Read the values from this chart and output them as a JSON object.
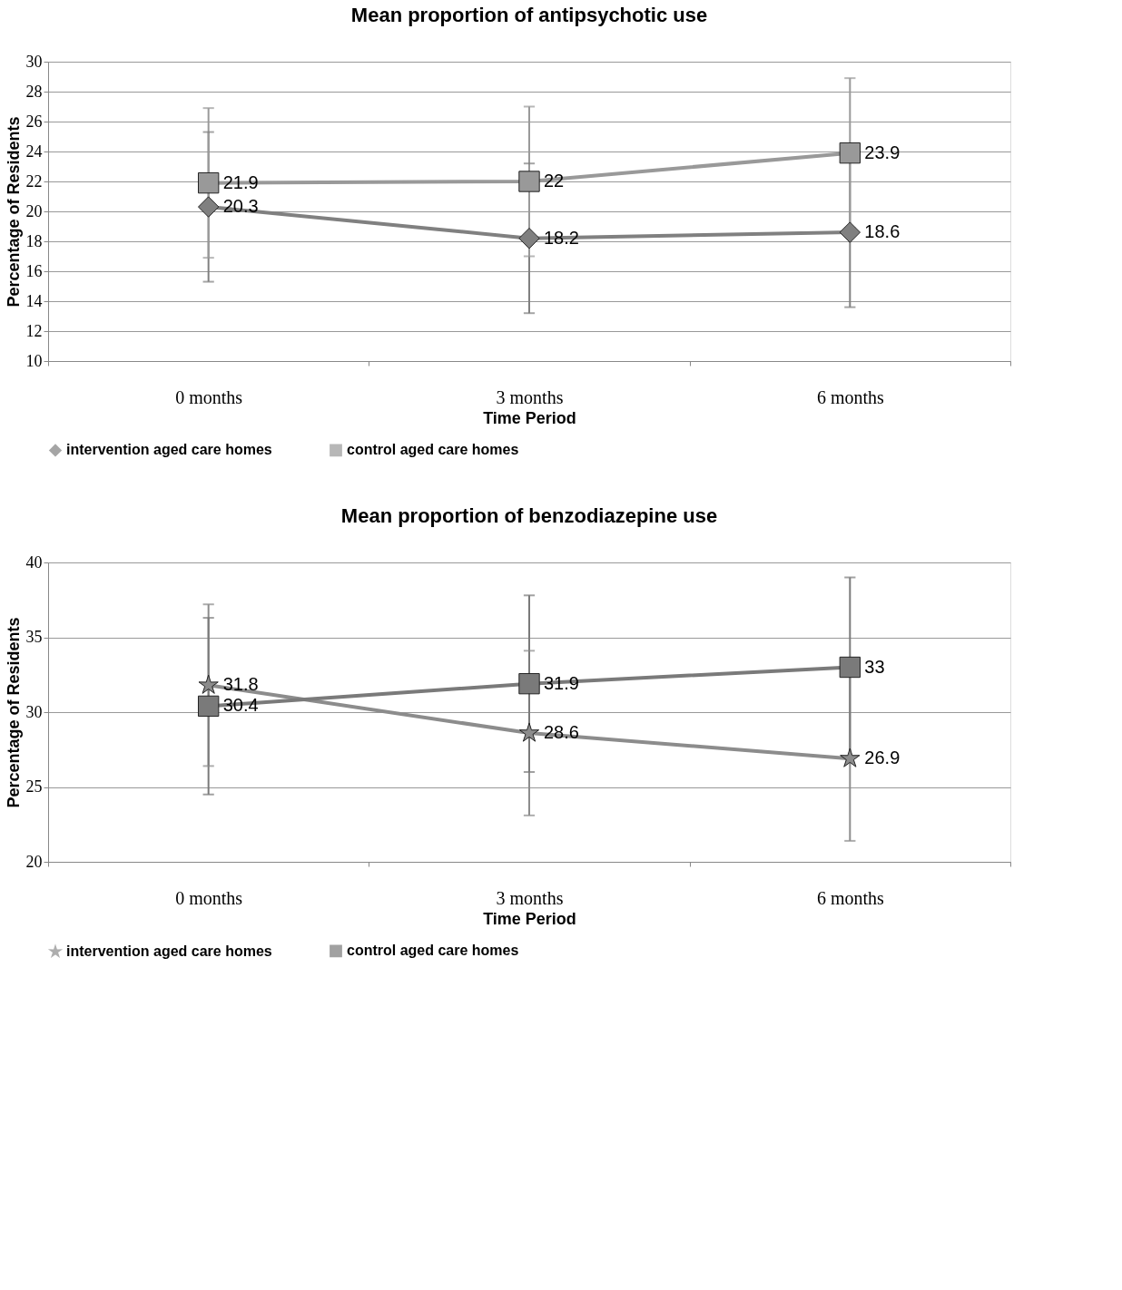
{
  "chart_data": [
    {
      "type": "line",
      "title": "Mean proportion of antipsychotic use",
      "xlabel": "Time Period",
      "ylabel": "Percentage of Residents",
      "categories": [
        "0 months",
        "3 months",
        "6 months"
      ],
      "ylim": [
        10,
        30
      ],
      "yticks": [
        10,
        12,
        14,
        16,
        18,
        20,
        22,
        24,
        26,
        28,
        30
      ],
      "grid": "y",
      "legend": "bottom",
      "data_labels": true,
      "series": [
        {
          "name": "intervention aged care homes",
          "color": "#808080",
          "marker": "diamond",
          "values": [
            20.3,
            18.2,
            18.6
          ],
          "errors": [
            5,
            5,
            5
          ]
        },
        {
          "name": "control aged care homes",
          "color": "#999999",
          "marker": "square",
          "values": [
            21.9,
            22,
            23.9
          ],
          "errors": [
            5,
            5,
            5
          ]
        }
      ]
    },
    {
      "type": "line",
      "title": "Mean proportion of benzodiazepine use",
      "xlabel": "Time Period",
      "ylabel": "Percentage of Residents",
      "categories": [
        "0 months",
        "3 months",
        "6 months"
      ],
      "ylim": [
        20,
        40
      ],
      "yticks": [
        20,
        25,
        30,
        35,
        40
      ],
      "grid": "y",
      "legend": "bottom",
      "data_labels": true,
      "series": [
        {
          "name": "intervention aged care homes",
          "color": "#8c8c8c",
          "marker": "star",
          "values": [
            31.8,
            28.6,
            26.9
          ],
          "errors": [
            5.4,
            5.5,
            5.5
          ]
        },
        {
          "name": "control aged care homes",
          "color": "#7a7a7a",
          "marker": "square",
          "values": [
            30.4,
            31.9,
            33
          ],
          "errors": [
            5.9,
            5.9,
            6
          ]
        }
      ]
    }
  ]
}
